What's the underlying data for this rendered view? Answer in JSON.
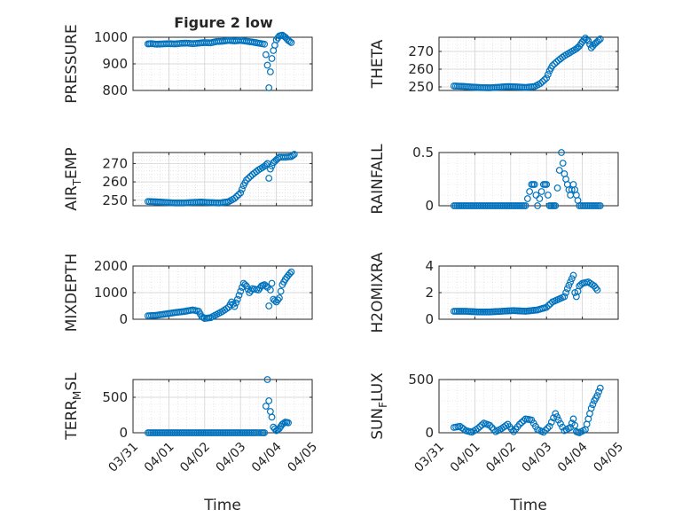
{
  "figure": {
    "title": "Figure 2 low"
  },
  "chart_data": [
    {
      "type": "scatter",
      "ylabel": "PRESSURE",
      "xlim": [
        "03/31",
        "04/05"
      ],
      "ylim": [
        800,
        1000
      ],
      "yticks": [
        800,
        900,
        1000
      ],
      "xticklabels": [],
      "grid": true,
      "points": [
        {
          "x": "03/31 10:00",
          "y": 975
        },
        {
          "x": "03/31 12:00",
          "y": 976
        },
        {
          "x": "03/31 16:00",
          "y": 974
        },
        {
          "x": "03/31 20:00",
          "y": 975
        },
        {
          "x": "04/01 00:00",
          "y": 976
        },
        {
          "x": "04/01 04:00",
          "y": 975
        },
        {
          "x": "04/01 08:00",
          "y": 977
        },
        {
          "x": "04/01 12:00",
          "y": 978
        },
        {
          "x": "04/01 16:00",
          "y": 976
        },
        {
          "x": "04/01 20:00",
          "y": 978
        },
        {
          "x": "04/02 00:00",
          "y": 980
        },
        {
          "x": "04/02 04:00",
          "y": 979
        },
        {
          "x": "04/02 08:00",
          "y": 984
        },
        {
          "x": "04/02 12:00",
          "y": 985
        },
        {
          "x": "04/02 16:00",
          "y": 988
        },
        {
          "x": "04/02 20:00",
          "y": 986
        },
        {
          "x": "04/03 00:00",
          "y": 988
        },
        {
          "x": "04/03 04:00",
          "y": 985
        },
        {
          "x": "04/03 08:00",
          "y": 982
        },
        {
          "x": "04/03 12:00",
          "y": 978
        },
        {
          "x": "04/03 16:00",
          "y": 974
        },
        {
          "x": "04/03 18:00",
          "y": 895
        },
        {
          "x": "04/03 19:00",
          "y": 810
        },
        {
          "x": "04/03 20:00",
          "y": 870
        },
        {
          "x": "04/03 21:00",
          "y": 920
        },
        {
          "x": "04/03 22:00",
          "y": 950
        },
        {
          "x": "04/04 00:00",
          "y": 990
        },
        {
          "x": "04/04 02:00",
          "y": 1005
        },
        {
          "x": "04/04 04:00",
          "y": 1008
        },
        {
          "x": "04/04 06:00",
          "y": 1000
        },
        {
          "x": "04/04 08:00",
          "y": 988
        },
        {
          "x": "04/04 10:00",
          "y": 980
        }
      ]
    },
    {
      "type": "scatter",
      "ylabel": "THETA",
      "xlim": [
        "03/31",
        "04/05"
      ],
      "ylim": [
        248,
        278
      ],
      "yticks": [
        250,
        260,
        270
      ],
      "xticklabels": [],
      "grid": true,
      "points": [
        {
          "x": "03/31 10:00",
          "y": 250.5
        },
        {
          "x": "03/31 16:00",
          "y": 250.3
        },
        {
          "x": "03/31 22:00",
          "y": 249.9
        },
        {
          "x": "04/01 04:00",
          "y": 249.6
        },
        {
          "x": "04/01 10:00",
          "y": 249.5
        },
        {
          "x": "04/01 16:00",
          "y": 249.8
        },
        {
          "x": "04/01 22:00",
          "y": 250.2
        },
        {
          "x": "04/02 04:00",
          "y": 250.0
        },
        {
          "x": "04/02 10:00",
          "y": 249.7
        },
        {
          "x": "04/02 16:00",
          "y": 250.2
        },
        {
          "x": "04/02 20:00",
          "y": 252
        },
        {
          "x": "04/03 00:00",
          "y": 255
        },
        {
          "x": "04/03 02:00",
          "y": 259
        },
        {
          "x": "04/03 04:00",
          "y": 262
        },
        {
          "x": "04/03 08:00",
          "y": 265
        },
        {
          "x": "04/03 12:00",
          "y": 267.5
        },
        {
          "x": "04/03 16:00",
          "y": 269.5
        },
        {
          "x": "04/03 20:00",
          "y": 271.5
        },
        {
          "x": "04/03 22:00",
          "y": 273
        },
        {
          "x": "04/04 00:00",
          "y": 275.5
        },
        {
          "x": "04/04 02:00",
          "y": 277.5
        },
        {
          "x": "04/04 04:00",
          "y": 276
        },
        {
          "x": "04/04 06:00",
          "y": 272
        },
        {
          "x": "04/04 08:00",
          "y": 274
        },
        {
          "x": "04/04 10:00",
          "y": 275.5
        },
        {
          "x": "04/04 12:00",
          "y": 277
        }
      ]
    },
    {
      "type": "scatter",
      "ylabel": "AIR_TEMP",
      "xlim": [
        "03/31",
        "04/05"
      ],
      "ylim": [
        247,
        276
      ],
      "yticks": [
        250,
        260,
        270
      ],
      "xticklabels": [],
      "grid": true,
      "points": [
        {
          "x": "03/31 10:00",
          "y": 249.3
        },
        {
          "x": "03/31 16:00",
          "y": 249.1
        },
        {
          "x": "03/31 22:00",
          "y": 248.8
        },
        {
          "x": "04/01 04:00",
          "y": 248.5
        },
        {
          "x": "04/01 10:00",
          "y": 248.5
        },
        {
          "x": "04/01 16:00",
          "y": 248.8
        },
        {
          "x": "04/01 22:00",
          "y": 249.0
        },
        {
          "x": "04/02 04:00",
          "y": 248.7
        },
        {
          "x": "04/02 10:00",
          "y": 248.5
        },
        {
          "x": "04/02 16:00",
          "y": 249.2
        },
        {
          "x": "04/02 20:00",
          "y": 251
        },
        {
          "x": "04/03 00:00",
          "y": 254
        },
        {
          "x": "04/03 02:00",
          "y": 258
        },
        {
          "x": "04/03 04:00",
          "y": 261
        },
        {
          "x": "04/03 08:00",
          "y": 264
        },
        {
          "x": "04/03 12:00",
          "y": 266.5
        },
        {
          "x": "04/03 16:00",
          "y": 268.5
        },
        {
          "x": "04/03 18:00",
          "y": 270
        },
        {
          "x": "04/03 19:00",
          "y": 262
        },
        {
          "x": "04/03 20:00",
          "y": 267
        },
        {
          "x": "04/03 22:00",
          "y": 270.5
        },
        {
          "x": "04/04 00:00",
          "y": 272
        },
        {
          "x": "04/04 02:00",
          "y": 273.5
        },
        {
          "x": "04/04 06:00",
          "y": 273.5
        },
        {
          "x": "04/04 10:00",
          "y": 273.8
        },
        {
          "x": "04/04 12:00",
          "y": 275
        }
      ]
    },
    {
      "type": "scatter",
      "ylabel": "RAINFALL",
      "xlim": [
        "03/31",
        "04/05"
      ],
      "ylim": [
        0,
        0.5
      ],
      "yticks": [
        0,
        0.5
      ],
      "xticklabels": [],
      "grid": true,
      "points": [
        {
          "x": "03/31 10:00",
          "y": 0
        },
        {
          "x": "03/31 18:00",
          "y": 0
        },
        {
          "x": "04/01 02:00",
          "y": 0
        },
        {
          "x": "04/01 10:00",
          "y": 0
        },
        {
          "x": "04/01 18:00",
          "y": 0
        },
        {
          "x": "04/02 02:00",
          "y": 0
        },
        {
          "x": "04/02 10:00",
          "y": 0
        },
        {
          "x": "04/02 14:00",
          "y": 0.2
        },
        {
          "x": "04/02 16:00",
          "y": 0.2
        },
        {
          "x": "04/02 18:00",
          "y": 0
        },
        {
          "x": "04/02 22:00",
          "y": 0.2
        },
        {
          "x": "04/03 00:00",
          "y": 0.2
        },
        {
          "x": "04/03 02:00",
          "y": 0
        },
        {
          "x": "04/03 04:00",
          "y": 0
        },
        {
          "x": "04/03 06:00",
          "y": 0
        },
        {
          "x": "04/03 10:00",
          "y": 0.5
        },
        {
          "x": "04/03 12:00",
          "y": 0.3
        },
        {
          "x": "04/03 14:00",
          "y": 0.2
        },
        {
          "x": "04/03 16:00",
          "y": 0.1
        },
        {
          "x": "04/03 18:00",
          "y": 0.2
        },
        {
          "x": "04/03 20:00",
          "y": 0.1
        },
        {
          "x": "04/03 22:00",
          "y": 0
        },
        {
          "x": "04/04 04:00",
          "y": 0
        },
        {
          "x": "04/04 12:00",
          "y": 0
        }
      ]
    },
    {
      "type": "scatter",
      "ylabel": "MIXDEPTH",
      "xlim": [
        "03/31",
        "04/05"
      ],
      "ylim": [
        0,
        2000
      ],
      "yticks": [
        0,
        1000,
        2000
      ],
      "xticklabels": [],
      "grid": true,
      "points": [
        {
          "x": "03/31 10:00",
          "y": 130
        },
        {
          "x": "03/31 16:00",
          "y": 150
        },
        {
          "x": "03/31 22:00",
          "y": 200
        },
        {
          "x": "04/01 04:00",
          "y": 250
        },
        {
          "x": "04/01 10:00",
          "y": 290
        },
        {
          "x": "04/01 16:00",
          "y": 350
        },
        {
          "x": "04/01 20:00",
          "y": 300
        },
        {
          "x": "04/01 22:00",
          "y": 100
        },
        {
          "x": "04/02 00:00",
          "y": 30
        },
        {
          "x": "04/02 04:00",
          "y": 60
        },
        {
          "x": "04/02 08:00",
          "y": 180
        },
        {
          "x": "04/02 12:00",
          "y": 300
        },
        {
          "x": "04/02 16:00",
          "y": 450
        },
        {
          "x": "04/02 18:00",
          "y": 650
        },
        {
          "x": "04/02 20:00",
          "y": 480
        },
        {
          "x": "04/02 22:00",
          "y": 750
        },
        {
          "x": "04/03 00:00",
          "y": 1050
        },
        {
          "x": "04/03 02:00",
          "y": 1350
        },
        {
          "x": "04/03 04:00",
          "y": 1250
        },
        {
          "x": "04/03 06:00",
          "y": 1000
        },
        {
          "x": "04/03 08:00",
          "y": 1150
        },
        {
          "x": "04/03 12:00",
          "y": 1100
        },
        {
          "x": "04/03 14:00",
          "y": 1250
        },
        {
          "x": "04/03 16:00",
          "y": 1300
        },
        {
          "x": "04/03 18:00",
          "y": 1200
        },
        {
          "x": "04/03 19:00",
          "y": 500
        },
        {
          "x": "04/03 20:00",
          "y": 1100
        },
        {
          "x": "04/03 21:00",
          "y": 1350
        },
        {
          "x": "04/03 22:00",
          "y": 750
        },
        {
          "x": "04/04 00:00",
          "y": 650
        },
        {
          "x": "04/04 02:00",
          "y": 800
        },
        {
          "x": "04/04 04:00",
          "y": 1300
        },
        {
          "x": "04/04 06:00",
          "y": 1500
        },
        {
          "x": "04/04 08:00",
          "y": 1650
        },
        {
          "x": "04/04 10:00",
          "y": 1780
        }
      ]
    },
    {
      "type": "scatter",
      "ylabel": "H2OMIXRA",
      "xlim": [
        "03/31",
        "04/05"
      ],
      "ylim": [
        0,
        4
      ],
      "yticks": [
        0,
        2,
        4
      ],
      "xticklabels": [],
      "grid": true,
      "points": [
        {
          "x": "03/31 10:00",
          "y": 0.6
        },
        {
          "x": "03/31 18:00",
          "y": 0.6
        },
        {
          "x": "04/01 02:00",
          "y": 0.55
        },
        {
          "x": "04/01 10:00",
          "y": 0.55
        },
        {
          "x": "04/01 18:00",
          "y": 0.6
        },
        {
          "x": "04/02 02:00",
          "y": 0.65
        },
        {
          "x": "04/02 10:00",
          "y": 0.6
        },
        {
          "x": "04/02 18:00",
          "y": 0.7
        },
        {
          "x": "04/03 00:00",
          "y": 0.9
        },
        {
          "x": "04/03 04:00",
          "y": 1.3
        },
        {
          "x": "04/03 08:00",
          "y": 1.5
        },
        {
          "x": "04/03 12:00",
          "y": 1.7
        },
        {
          "x": "04/03 14:00",
          "y": 2.3
        },
        {
          "x": "04/03 16:00",
          "y": 2.8
        },
        {
          "x": "04/03 18:00",
          "y": 3.3
        },
        {
          "x": "04/03 19:00",
          "y": 2.0
        },
        {
          "x": "04/03 20:00",
          "y": 1.7
        },
        {
          "x": "04/03 22:00",
          "y": 2.5
        },
        {
          "x": "04/04 00:00",
          "y": 2.7
        },
        {
          "x": "04/04 04:00",
          "y": 2.8
        },
        {
          "x": "04/04 08:00",
          "y": 2.5
        },
        {
          "x": "04/04 10:00",
          "y": 2.2
        }
      ]
    },
    {
      "type": "scatter",
      "ylabel": "TERR_MSL",
      "xlabel": "Time",
      "xlim": [
        "03/31",
        "04/05"
      ],
      "ylim": [
        0,
        750
      ],
      "yticks": [
        0,
        500
      ],
      "xticklabels": [
        "03/31",
        "04/01",
        "04/02",
        "04/03",
        "04/04",
        "04/05"
      ],
      "grid": true,
      "points": [
        {
          "x": "03/31 10:00",
          "y": 0
        },
        {
          "x": "03/31 18:00",
          "y": 0
        },
        {
          "x": "04/01 02:00",
          "y": 0
        },
        {
          "x": "04/01 10:00",
          "y": 0
        },
        {
          "x": "04/01 18:00",
          "y": 0
        },
        {
          "x": "04/02 02:00",
          "y": 0
        },
        {
          "x": "04/02 10:00",
          "y": 0
        },
        {
          "x": "04/02 18:00",
          "y": 0
        },
        {
          "x": "04/03 02:00",
          "y": 0
        },
        {
          "x": "04/03 10:00",
          "y": 0
        },
        {
          "x": "04/03 14:00",
          "y": 0
        },
        {
          "x": "04/03 16:00",
          "y": 0
        },
        {
          "x": "04/03 18:00",
          "y": 750
        },
        {
          "x": "04/03 19:00",
          "y": 450
        },
        {
          "x": "04/03 20:00",
          "y": 300
        },
        {
          "x": "04/03 21:00",
          "y": 220
        },
        {
          "x": "04/03 22:00",
          "y": 80
        },
        {
          "x": "04/04 00:00",
          "y": 30
        },
        {
          "x": "04/04 02:00",
          "y": 60
        },
        {
          "x": "04/04 04:00",
          "y": 120
        },
        {
          "x": "04/04 06:00",
          "y": 150
        },
        {
          "x": "04/04 08:00",
          "y": 140
        }
      ]
    },
    {
      "type": "scatter",
      "ylabel": "SUN_FLUX",
      "xlabel": "Time",
      "xlim": [
        "03/31",
        "04/05"
      ],
      "ylim": [
        0,
        500
      ],
      "yticks": [
        0,
        500
      ],
      "xticklabels": [
        "03/31",
        "04/01",
        "04/02",
        "04/03",
        "04/04",
        "04/05"
      ],
      "grid": true,
      "points": [
        {
          "x": "03/31 10:00",
          "y": 50
        },
        {
          "x": "03/31 14:00",
          "y": 60
        },
        {
          "x": "03/31 18:00",
          "y": 20
        },
        {
          "x": "03/31 22:00",
          "y": 5
        },
        {
          "x": "04/01 02:00",
          "y": 40
        },
        {
          "x": "04/01 06:00",
          "y": 90
        },
        {
          "x": "04/01 10:00",
          "y": 70
        },
        {
          "x": "04/01 14:00",
          "y": 10
        },
        {
          "x": "04/01 18:00",
          "y": 40
        },
        {
          "x": "04/01 22:00",
          "y": 80
        },
        {
          "x": "04/02 02:00",
          "y": 10
        },
        {
          "x": "04/02 06:00",
          "y": 80
        },
        {
          "x": "04/02 10:00",
          "y": 130
        },
        {
          "x": "04/02 14:00",
          "y": 120
        },
        {
          "x": "04/02 18:00",
          "y": 30
        },
        {
          "x": "04/02 22:00",
          "y": 5
        },
        {
          "x": "04/03 02:00",
          "y": 60
        },
        {
          "x": "04/03 06:00",
          "y": 180
        },
        {
          "x": "04/03 08:00",
          "y": 120
        },
        {
          "x": "04/03 12:00",
          "y": 20
        },
        {
          "x": "04/03 16:00",
          "y": 50
        },
        {
          "x": "04/03 18:00",
          "y": 130
        },
        {
          "x": "04/03 20:00",
          "y": 10
        },
        {
          "x": "04/03 22:00",
          "y": 0
        },
        {
          "x": "04/04 02:00",
          "y": 30
        },
        {
          "x": "04/04 04:00",
          "y": 130
        },
        {
          "x": "04/04 06:00",
          "y": 230
        },
        {
          "x": "04/04 08:00",
          "y": 300
        },
        {
          "x": "04/04 10:00",
          "y": 350
        },
        {
          "x": "04/04 12:00",
          "y": 420
        }
      ]
    }
  ]
}
